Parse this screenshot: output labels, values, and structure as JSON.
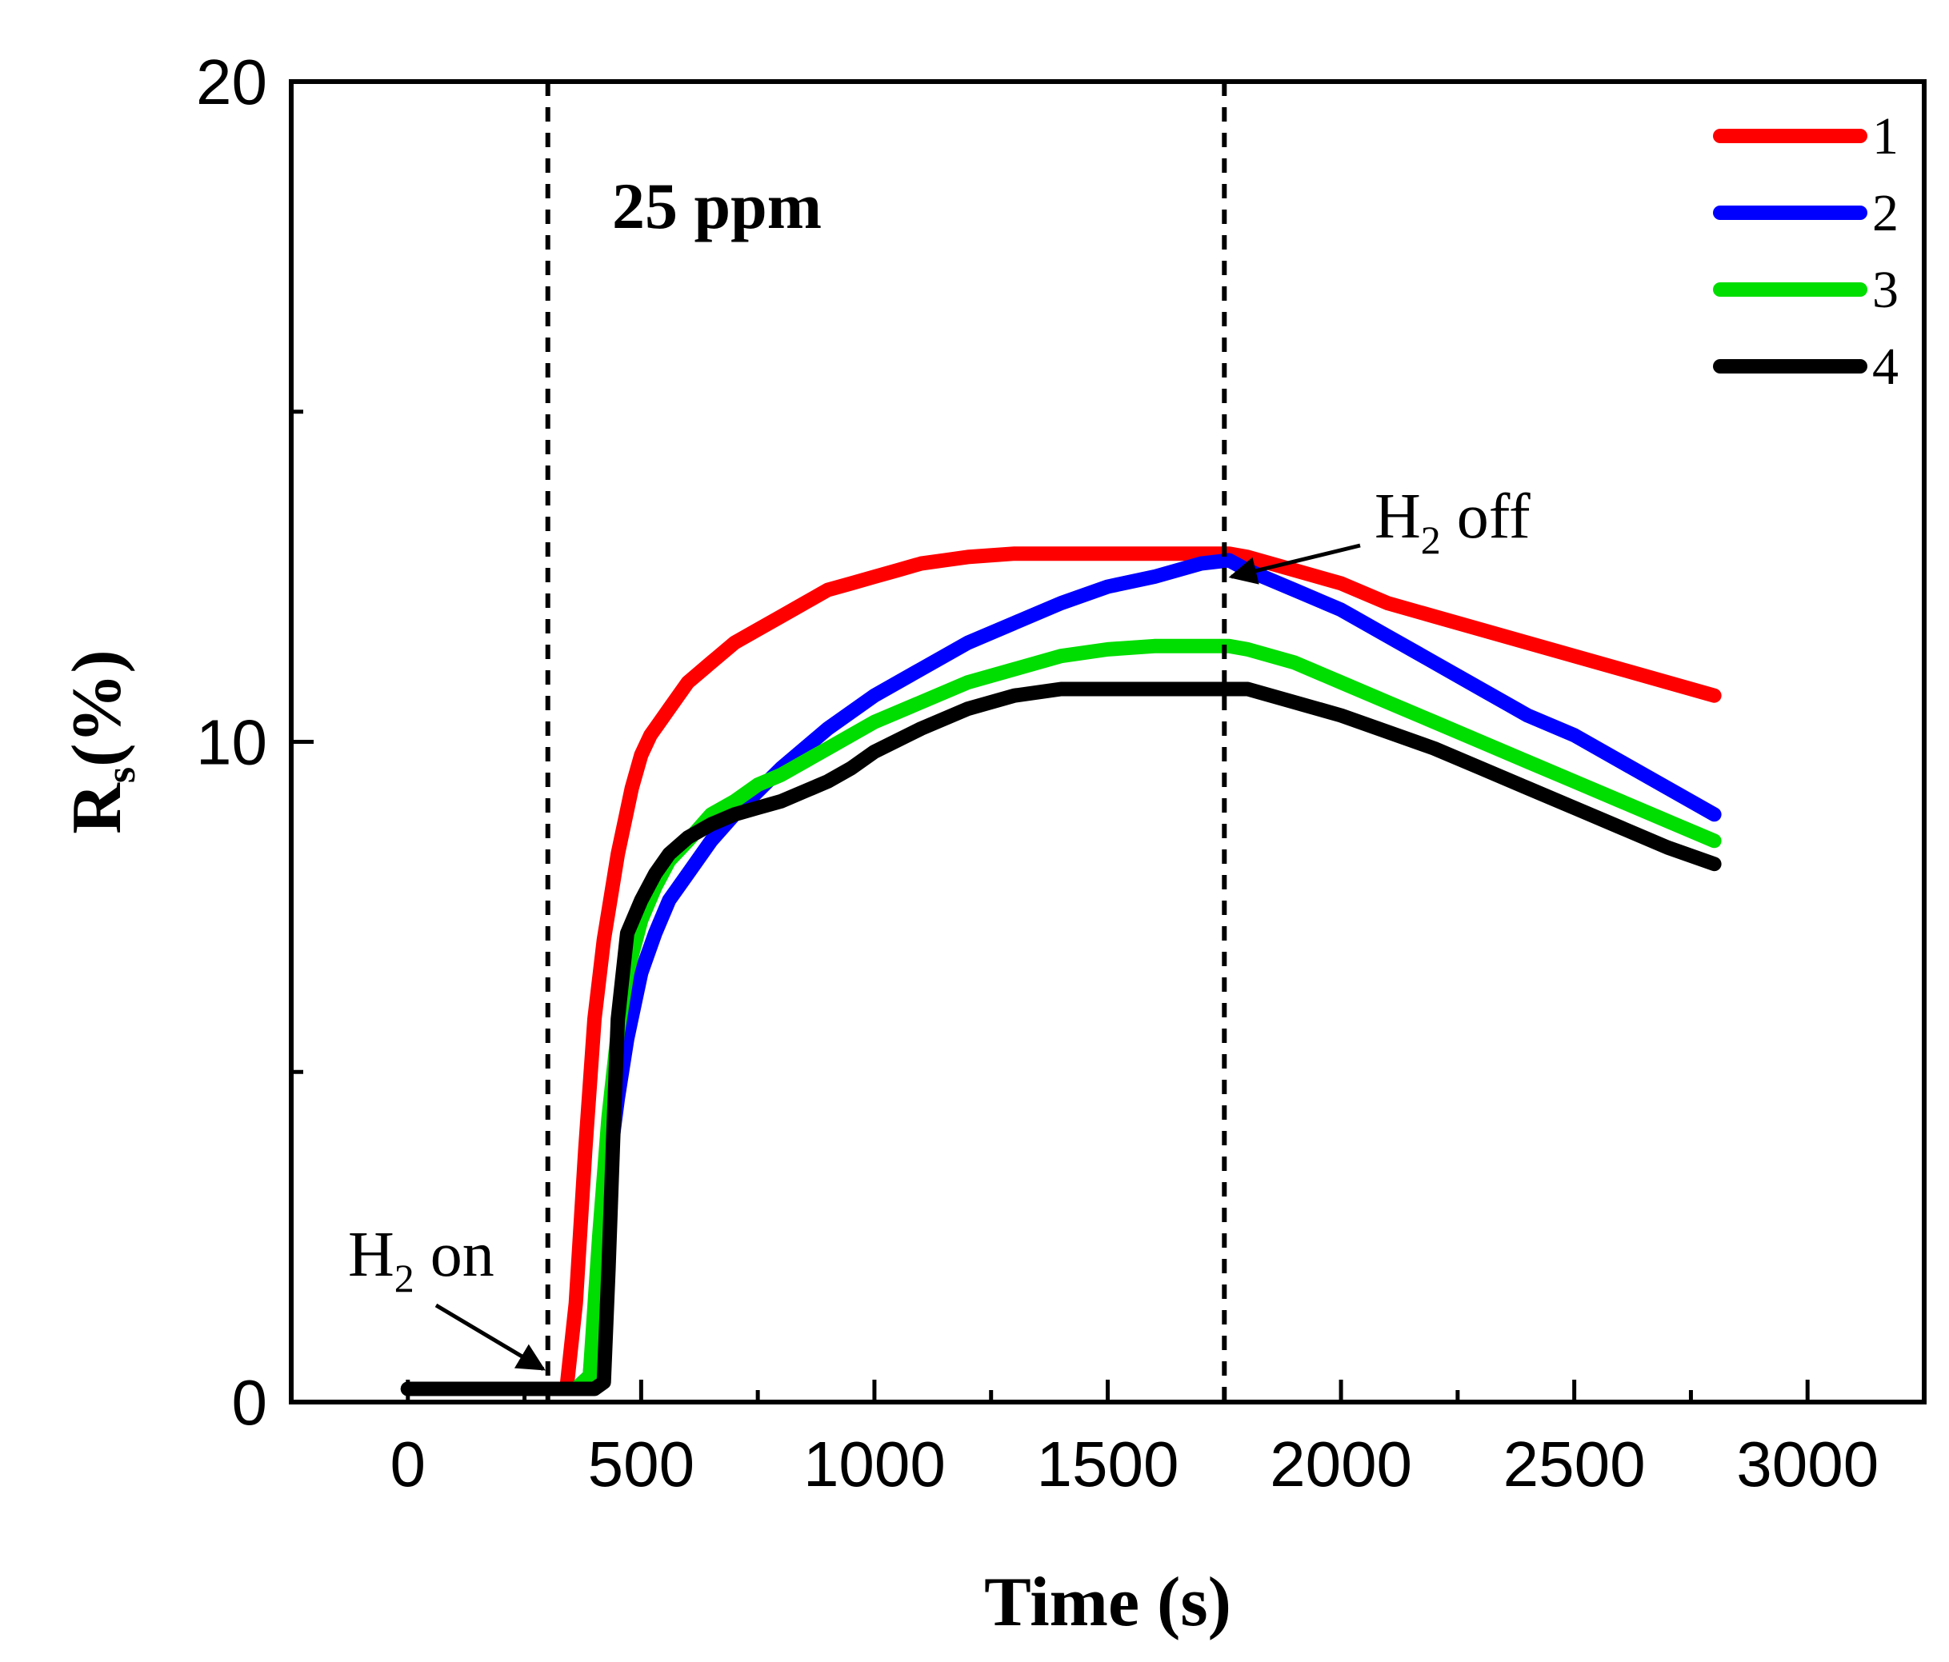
{
  "chart_data": {
    "type": "line",
    "title": "",
    "xlabel": "Time (s)",
    "ylabel": {
      "main": "R",
      "sub": "s",
      "tail": "(%)"
    },
    "xlim": [
      -250,
      3250
    ],
    "ylim": [
      0,
      20
    ],
    "xticks": [
      0,
      500,
      1000,
      1500,
      2000,
      2500,
      3000
    ],
    "xtick_labels": [
      "0",
      "500",
      "1000",
      "1500",
      "2000",
      "2500",
      "3000"
    ],
    "xminor": [
      250,
      750,
      1250,
      1750,
      2250,
      2750
    ],
    "yticks": [
      0,
      10,
      20
    ],
    "ytick_labels": [
      "0",
      "10",
      "20"
    ],
    "yminor": [
      5,
      15
    ],
    "concentration_label": "25 ppm",
    "vlines": [
      300,
      1750
    ],
    "annotations": [
      {
        "id": "on",
        "main": "H",
        "sub": "2",
        "tail": " on",
        "target": [
          290,
          0.5
        ]
      },
      {
        "id": "off",
        "main": "H",
        "sub": "2",
        "tail": " off",
        "target": [
          1765,
          12.5
        ]
      }
    ],
    "colors": {
      "1": "#ff0000",
      "2": "#0000ff",
      "3": "#00dd00",
      "4": "#000000"
    },
    "series": [
      {
        "name": "1",
        "x": [
          0,
          300,
          340,
          360,
          380,
          400,
          420,
          450,
          480,
          500,
          520,
          540,
          560,
          600,
          650,
          700,
          750,
          800,
          850,
          900,
          950,
          1000,
          1050,
          1100,
          1150,
          1200,
          1300,
          1400,
          1500,
          1600,
          1700,
          1760,
          1800,
          1900,
          2000,
          2100,
          2200,
          2300,
          2400,
          2500,
          2600,
          2700,
          2800
        ],
        "values": [
          0.2,
          0.2,
          0.2,
          1.5,
          3.8,
          5.8,
          7.0,
          8.3,
          9.3,
          9.8,
          10.1,
          10.3,
          10.5,
          10.9,
          11.2,
          11.5,
          11.7,
          11.9,
          12.1,
          12.3,
          12.4,
          12.5,
          12.6,
          12.7,
          12.75,
          12.8,
          12.85,
          12.85,
          12.85,
          12.85,
          12.85,
          12.85,
          12.8,
          12.6,
          12.4,
          12.1,
          11.9,
          11.7,
          11.5,
          11.3,
          11.1,
          10.9,
          10.7
        ]
      },
      {
        "name": "2",
        "x": [
          0,
          300,
          360,
          390,
          410,
          430,
          450,
          470,
          500,
          530,
          560,
          600,
          650,
          700,
          800,
          900,
          1000,
          1100,
          1200,
          1300,
          1400,
          1500,
          1600,
          1700,
          1760,
          1800,
          1900,
          2000,
          2100,
          2200,
          2300,
          2400,
          2500,
          2600,
          2700,
          2800
        ],
        "values": [
          0.2,
          0.2,
          0.2,
          0.4,
          2.0,
          3.5,
          4.6,
          5.5,
          6.5,
          7.1,
          7.6,
          8.0,
          8.5,
          8.9,
          9.6,
          10.2,
          10.7,
          11.1,
          11.5,
          11.8,
          12.1,
          12.35,
          12.5,
          12.7,
          12.75,
          12.6,
          12.3,
          12.0,
          11.6,
          11.2,
          10.8,
          10.4,
          10.1,
          9.7,
          9.3,
          8.9
        ]
      },
      {
        "name": "3",
        "x": [
          0,
          300,
          360,
          390,
          410,
          430,
          450,
          470,
          500,
          530,
          560,
          600,
          650,
          700,
          750,
          800,
          900,
          1000,
          1100,
          1200,
          1300,
          1400,
          1500,
          1600,
          1700,
          1760,
          1800,
          1900,
          2000,
          2100,
          2200,
          2300,
          2400,
          2500,
          2600,
          2700,
          2800
        ],
        "values": [
          0.2,
          0.2,
          0.2,
          0.4,
          2.5,
          4.3,
          5.6,
          6.5,
          7.3,
          7.8,
          8.2,
          8.5,
          8.9,
          9.1,
          9.35,
          9.5,
          9.9,
          10.3,
          10.6,
          10.9,
          11.1,
          11.3,
          11.4,
          11.45,
          11.45,
          11.45,
          11.4,
          11.2,
          10.9,
          10.6,
          10.3,
          10.0,
          9.7,
          9.4,
          9.1,
          8.8,
          8.5
        ]
      },
      {
        "name": "4",
        "x": [
          0,
          300,
          400,
          420,
          430,
          440,
          450,
          470,
          500,
          530,
          560,
          600,
          650,
          700,
          750,
          800,
          850,
          900,
          950,
          1000,
          1100,
          1200,
          1300,
          1400,
          1500,
          1600,
          1700,
          1760,
          1800,
          1900,
          2000,
          2100,
          2200,
          2300,
          2400,
          2500,
          2600,
          2700,
          2800
        ],
        "values": [
          0.2,
          0.2,
          0.2,
          0.3,
          2.0,
          4.0,
          5.8,
          7.1,
          7.6,
          8.0,
          8.3,
          8.55,
          8.75,
          8.9,
          9.0,
          9.1,
          9.25,
          9.4,
          9.6,
          9.85,
          10.2,
          10.5,
          10.7,
          10.8,
          10.8,
          10.8,
          10.8,
          10.8,
          10.8,
          10.6,
          10.4,
          10.15,
          9.9,
          9.6,
          9.3,
          9.0,
          8.7,
          8.4,
          8.15
        ]
      }
    ]
  }
}
